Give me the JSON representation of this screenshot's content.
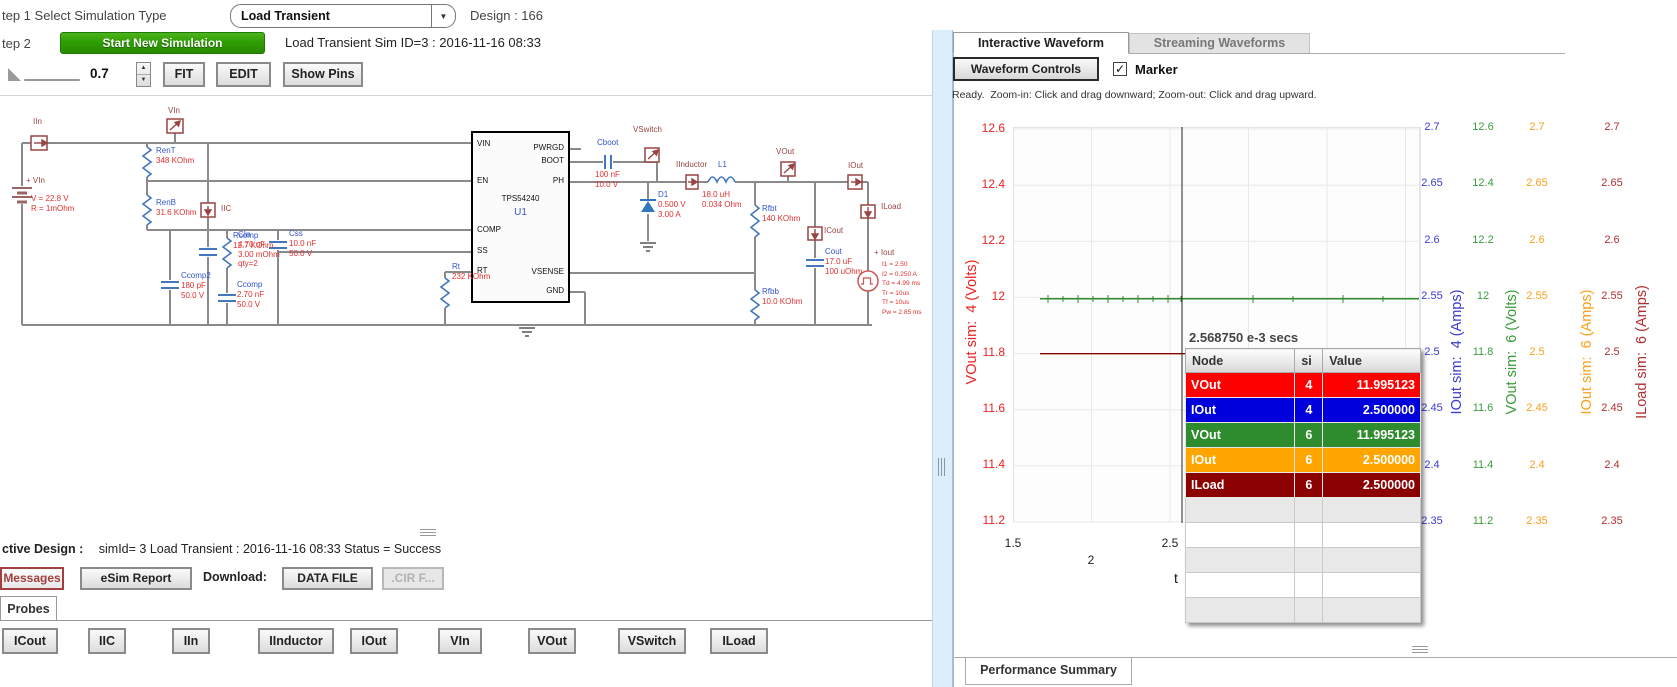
{
  "toolbar": {
    "step1_label": "tep 1 Select Simulation Type",
    "sim_type_value": "Load Transient",
    "dropdown_arrow": "▼",
    "design_label": "Design : 166",
    "step2_label": "tep 2",
    "start_button": "Start New Simulation",
    "sim_info": "Load Transient Sim ID=3 : 2016-11-16 08:33",
    "zoom_value": "0.7",
    "spin_up": "▲",
    "spin_down": "▼",
    "fit_button": "FIT",
    "edit_button": "EDIT",
    "show_pins_button": "Show Pins"
  },
  "schematic": {
    "chip": {
      "part": "TPS54240",
      "refdes": "U1",
      "left_pins": [
        "VIN",
        "EN",
        "COMP",
        "SS",
        "RT"
      ],
      "right_pins": [
        "PWRGD",
        "BOOT",
        "PH",
        "VSENSE",
        "GND"
      ]
    },
    "probes": {
      "iin": "IIn",
      "vin": "VIn",
      "iic": "IIC",
      "vswitch": "VSwitch",
      "iinductor": "IInductor",
      "vout": "VOut",
      "iout": "IOut",
      "icout": "ICout",
      "iload": "ILoad"
    },
    "source": {
      "name": "+ VIn",
      "values": "V = 22.8 V\nR = 1mOhm"
    },
    "components": {
      "cin": {
        "name": "CIn",
        "values": "4.70 uF\n3.00 mOhm\nqty=2"
      },
      "rent": {
        "name": "RenT",
        "values": "348 KOhm"
      },
      "renb": {
        "name": "RenB",
        "values": "31.6 KOhm"
      },
      "rcomp": {
        "name": "Rcomp",
        "values": "12.7 KOhm"
      },
      "ccomp2": {
        "name": "Ccomp2",
        "values": "180 pF\n50.0 V"
      },
      "ccomp": {
        "name": "Ccomp",
        "values": "2.70 nF\n50.0 V"
      },
      "css": {
        "name": "Css",
        "values": "10.0 nF\n50.0 V"
      },
      "rt": {
        "name": "Rt",
        "values": "232 KOhm"
      },
      "cboot": {
        "name": "Cboot",
        "values": "100 nF\n10.0 V"
      },
      "d1": {
        "name": "D1",
        "values": "0.500 V\n3.00 A"
      },
      "l1": {
        "name": "L1",
        "values": "18.0 uH\n0.034 Ohm"
      },
      "rfbt": {
        "name": "Rfbt",
        "values": "140 KOhm"
      },
      "rfbb": {
        "name": "Rfbb",
        "values": "10.0 KOhm"
      },
      "cout": {
        "name": "Cout",
        "values": "17.0 uF\n100 uOhm"
      },
      "iout_src": {
        "name": "+ Iout",
        "values": "I1 = 2.50\nI2 = 0.250 A\nTd = 4.99 ms\nTr = 10us\nTf = 10us\nPw = 2.85 ms"
      }
    }
  },
  "status": {
    "active_design_label": "ctive Design :",
    "text": "simId= 3 Load Transient : 2016-11-16 08:33 Status = Success",
    "messages_button": "Messages",
    "esim_button": "eSim Report",
    "download_label": "Download:",
    "datafile_button": "DATA FILE",
    "cir_button": ".CIR F...",
    "probes_tab": "Probes",
    "probe_buttons": [
      "ICout",
      "IIC",
      "IIn",
      "IInductor",
      "IOut",
      "VIn",
      "VOut",
      "VSwitch",
      "ILoad"
    ]
  },
  "waveform": {
    "tab_interactive": "Interactive Waveform",
    "tab_streaming": "Streaming Waveforms",
    "controls_button": "Waveform Controls",
    "marker_label": "Marker",
    "marker_checked": "✓",
    "status_text": "Ready.  Zoom-in: Click and drag downward; Zoom-out: Click and drag upward.",
    "performance_tab": "Performance Summary",
    "tooltip": {
      "time": "2.568750 e-3 secs",
      "headers": [
        "Node",
        "si",
        "Value"
      ],
      "rows": [
        {
          "node": "VOut",
          "si": "4",
          "value": "11.995123",
          "color": "#ff0000"
        },
        {
          "node": "IOut",
          "si": "4",
          "value": "2.500000",
          "color": "#0000dd"
        },
        {
          "node": "VOut",
          "si": "6",
          "value": "11.995123",
          "color": "#2e8b2e"
        },
        {
          "node": "IOut",
          "si": "6",
          "value": "2.500000",
          "color": "#ffa500"
        },
        {
          "node": "ILoad",
          "si": "6",
          "value": "2.500000",
          "color": "#8b0000"
        }
      ]
    }
  },
  "chart_data": {
    "type": "line",
    "xlabel": "t",
    "x_units": "e-3 secs",
    "x_ticks": [
      1.5,
      2,
      2.5
    ],
    "x_tick_labels": [
      "1.5",
      "2",
      "2.5"
    ],
    "x_range": [
      1.5,
      4.08
    ],
    "marker_x": 2.56875,
    "grid": true,
    "axes": [
      {
        "label": "VOut sim:  4 (Volts)",
        "color": "#ee2222",
        "side": "left",
        "range": [
          11.2,
          12.6
        ],
        "ticks": [
          12.6,
          12.4,
          12.2,
          12,
          11.8,
          11.6,
          11.4,
          11.2
        ],
        "tick_labels": [
          "12.6",
          "12.4",
          "12.2",
          "12",
          "11.8",
          "11.6",
          "11.4",
          "11.2"
        ]
      },
      {
        "label": "IOut sim:  4 (Amps)",
        "color": "#3b3bd1",
        "side": "right",
        "range": [
          2.35,
          2.7
        ],
        "ticks": [
          2.7,
          2.65,
          2.6,
          2.55,
          2.5,
          2.45,
          2.4,
          2.35
        ],
        "tick_labels": [
          "2.7",
          "2.65",
          "2.6",
          "2.55",
          "2.5",
          "2.45",
          "2.4",
          "2.35"
        ]
      },
      {
        "label": "VOut sim:  6 (Volts)",
        "color": "#3a9b3a",
        "side": "right",
        "range": [
          11.2,
          12.6
        ],
        "ticks": [
          12.6,
          12.4,
          12.2,
          12,
          11.8,
          11.6,
          11.4,
          11.2
        ],
        "tick_labels": [
          "12.6",
          "12.4",
          "12.2",
          "12",
          "11.8",
          "11.6",
          "11.4",
          "11.2"
        ]
      },
      {
        "label": "IOut sim:  6 (Amps)",
        "color": "#f9a11b",
        "side": "right",
        "range": [
          2.35,
          2.7
        ],
        "ticks": [
          2.7,
          2.65,
          2.6,
          2.55,
          2.5,
          2.45,
          2.4,
          2.35
        ],
        "tick_labels": [
          "2.7",
          "2.65",
          "2.6",
          "2.55",
          "2.5",
          "2.45",
          "2.4",
          "2.35"
        ]
      },
      {
        "label": "ILoad sim:  6 (Amps)",
        "color": "#b03030",
        "side": "right",
        "range": [
          2.35,
          2.7
        ],
        "ticks": [
          2.7,
          2.65,
          2.6,
          2.55,
          2.5,
          2.45,
          2.4,
          2.35
        ],
        "tick_labels": [
          "2.7",
          "2.65",
          "2.6",
          "2.55",
          "2.5",
          "2.45",
          "2.4",
          "2.35"
        ]
      }
    ],
    "series": [
      {
        "name": "VOut sim 4",
        "axis": 0,
        "color": "#ff0000",
        "value": 11.995123
      },
      {
        "name": "IOut sim 4",
        "axis": 1,
        "color": "#0000dd",
        "value": 2.5
      },
      {
        "name": "VOut sim 6",
        "axis": 2,
        "color": "#2e8b2e",
        "value": 11.995123
      },
      {
        "name": "IOut sim 6",
        "axis": 3,
        "color": "#ffa500",
        "value": 2.5
      },
      {
        "name": "ILoad sim 6",
        "axis": 4,
        "color": "#8b0000",
        "value": 2.5
      }
    ]
  },
  "colors": {
    "start_button_green": "#2f9e05",
    "probe_maroon": "#994444",
    "component_name_blue": "#3355cc",
    "component_value_red": "#e03030",
    "splitter_blue": "#ddeefb"
  }
}
